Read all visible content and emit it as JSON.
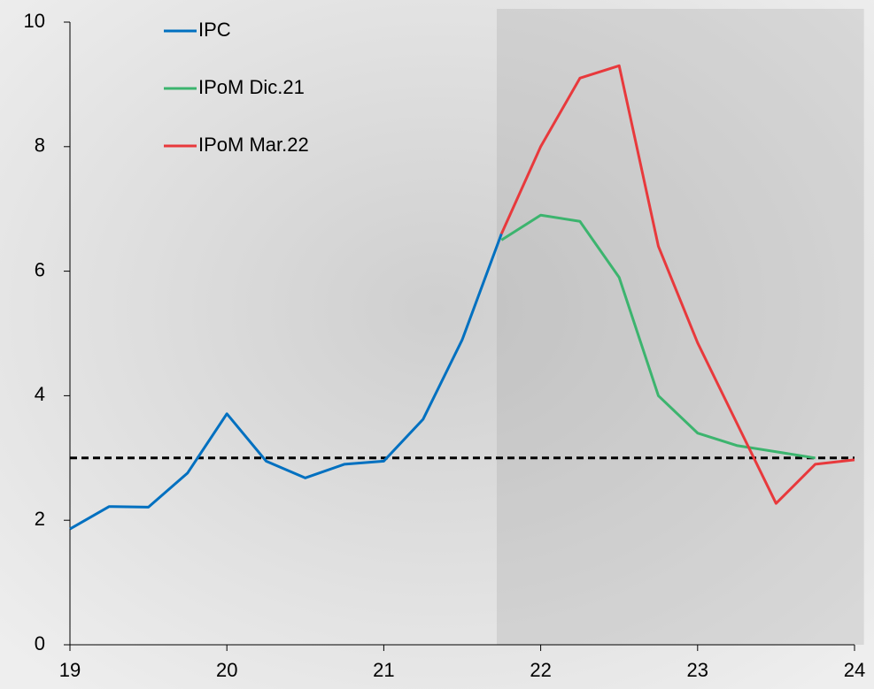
{
  "chart_data": {
    "type": "line",
    "series": [
      {
        "name": "IPC",
        "color": "#0070c0",
        "x": [
          19,
          19.25,
          19.5,
          19.75,
          20,
          20.25,
          20.5,
          20.75,
          21,
          21.25,
          21.5,
          21.75
        ],
        "values": [
          1.86,
          2.22,
          2.21,
          2.76,
          3.71,
          2.95,
          2.68,
          2.9,
          2.95,
          3.62,
          4.9,
          6.6
        ]
      },
      {
        "name": "IPoM Dic.21",
        "color": "#3cb46e",
        "x": [
          21.75,
          22,
          22.25,
          22.5,
          22.75,
          23,
          23.25,
          23.5,
          23.75
        ],
        "values": [
          6.5,
          6.9,
          6.8,
          5.9,
          4.0,
          3.4,
          3.2,
          3.1,
          3.0
        ]
      },
      {
        "name": "IPoM Mar.22",
        "color": "#e8393c",
        "x": [
          21.75,
          22,
          22.25,
          22.5,
          22.75,
          23,
          23.25,
          23.5,
          23.75,
          24
        ],
        "values": [
          6.6,
          8.0,
          9.1,
          9.3,
          6.4,
          4.85,
          3.56,
          2.27,
          2.9,
          2.97
        ]
      }
    ],
    "reference_line": 3,
    "shaded_range": [
      21.72,
      24.06
    ],
    "xlim": [
      19,
      24
    ],
    "xticks": [
      19,
      20,
      21,
      22,
      23,
      24
    ],
    "ylim": [
      0,
      10
    ],
    "yticks": [
      0,
      2,
      4,
      6,
      8,
      10
    ],
    "legend": "top-left"
  }
}
